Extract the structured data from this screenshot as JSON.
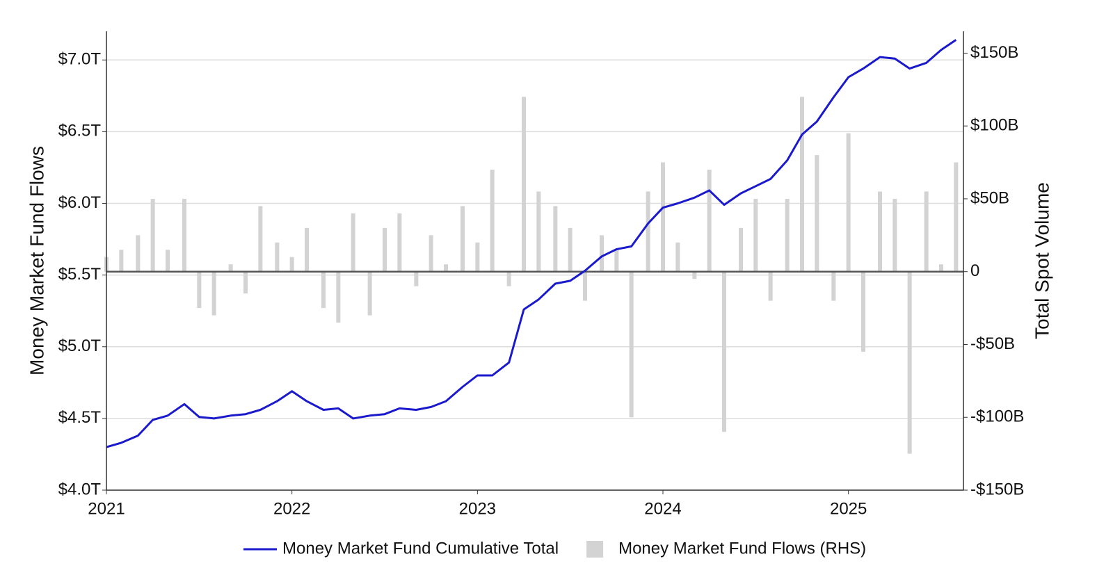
{
  "chart_data": {
    "type": "combo",
    "y_label": "Money Market Fund Flows",
    "y2_label": "Total Spot Volume",
    "x": [
      2021.0,
      2021.08,
      2021.17,
      2021.25,
      2021.33,
      2021.42,
      2021.5,
      2021.58,
      2021.67,
      2021.75,
      2021.83,
      2021.92,
      2022.0,
      2022.08,
      2022.17,
      2022.25,
      2022.33,
      2022.42,
      2022.5,
      2022.58,
      2022.67,
      2022.75,
      2022.83,
      2022.92,
      2023.0,
      2023.08,
      2023.17,
      2023.25,
      2023.33,
      2023.42,
      2023.5,
      2023.58,
      2023.67,
      2023.75,
      2023.83,
      2023.92,
      2024.0,
      2024.08,
      2024.17,
      2024.25,
      2024.33,
      2024.42,
      2024.5,
      2024.58,
      2024.67,
      2024.75,
      2024.83,
      2024.92,
      2025.0,
      2025.08,
      2025.17,
      2025.25,
      2025.33,
      2025.42,
      2025.5,
      2025.58
    ],
    "series": [
      {
        "name": "Money Market Fund Cumulative Total",
        "type": "line",
        "color": "#1a1acc",
        "values": [
          4.3,
          4.33,
          4.38,
          4.49,
          4.52,
          4.6,
          4.51,
          4.5,
          4.52,
          4.53,
          4.56,
          4.62,
          4.69,
          4.62,
          4.56,
          4.57,
          4.5,
          4.52,
          4.53,
          4.57,
          4.56,
          4.58,
          4.62,
          4.72,
          4.8,
          4.8,
          4.89,
          5.26,
          5.33,
          5.44,
          5.46,
          5.53,
          5.63,
          5.68,
          5.7,
          5.86,
          5.97,
          6.0,
          6.04,
          6.09,
          5.99,
          6.07,
          6.12,
          6.17,
          6.3,
          6.48,
          6.57,
          6.74,
          6.88,
          6.94,
          7.02,
          7.01,
          6.94,
          6.98,
          7.07,
          7.14
        ]
      },
      {
        "name": "Money Market Fund Flows (RHS)",
        "type": "bar",
        "axis": "y2",
        "color": "#d3d3d3",
        "values": [
          10,
          15,
          25,
          50,
          15,
          50,
          -25,
          -30,
          5,
          -15,
          45,
          20,
          10,
          30,
          -25,
          -35,
          40,
          -30,
          30,
          40,
          -10,
          25,
          5,
          45,
          20,
          70,
          -10,
          120,
          55,
          45,
          30,
          -20,
          25,
          15,
          -100,
          55,
          75,
          20,
          -5,
          70,
          -110,
          30,
          50,
          -20,
          50,
          120,
          80,
          -20,
          95,
          -55,
          55,
          50,
          -125,
          55,
          5,
          75
        ]
      }
    ],
    "xlim": [
      2021,
      2025.62
    ],
    "xticks": [
      2021,
      2022,
      2023,
      2024,
      2025
    ],
    "ylim": [
      4.0,
      7.2
    ],
    "yticks": [
      {
        "value": 4.0,
        "label": "$4.0T"
      },
      {
        "value": 4.5,
        "label": "$4.5T"
      },
      {
        "value": 5.0,
        "label": "$5.0T"
      },
      {
        "value": 5.5,
        "label": "$5.5T"
      },
      {
        "value": 6.0,
        "label": "$6.0T"
      },
      {
        "value": 6.5,
        "label": "$6.5T"
      },
      {
        "value": 7.0,
        "label": "$7.0T"
      }
    ],
    "y2lim": [
      -150,
      165
    ],
    "y2ticks": [
      {
        "value": -150,
        "label": "-$150B"
      },
      {
        "value": -100,
        "label": "-$100B"
      },
      {
        "value": -50,
        "label": "-$50B"
      },
      0,
      {
        "value": 50,
        "label": "$50B"
      },
      {
        "value": 100,
        "label": "$100B"
      },
      {
        "value": 150,
        "label": "$150B"
      }
    ],
    "grid": true,
    "legend": "bottom"
  }
}
